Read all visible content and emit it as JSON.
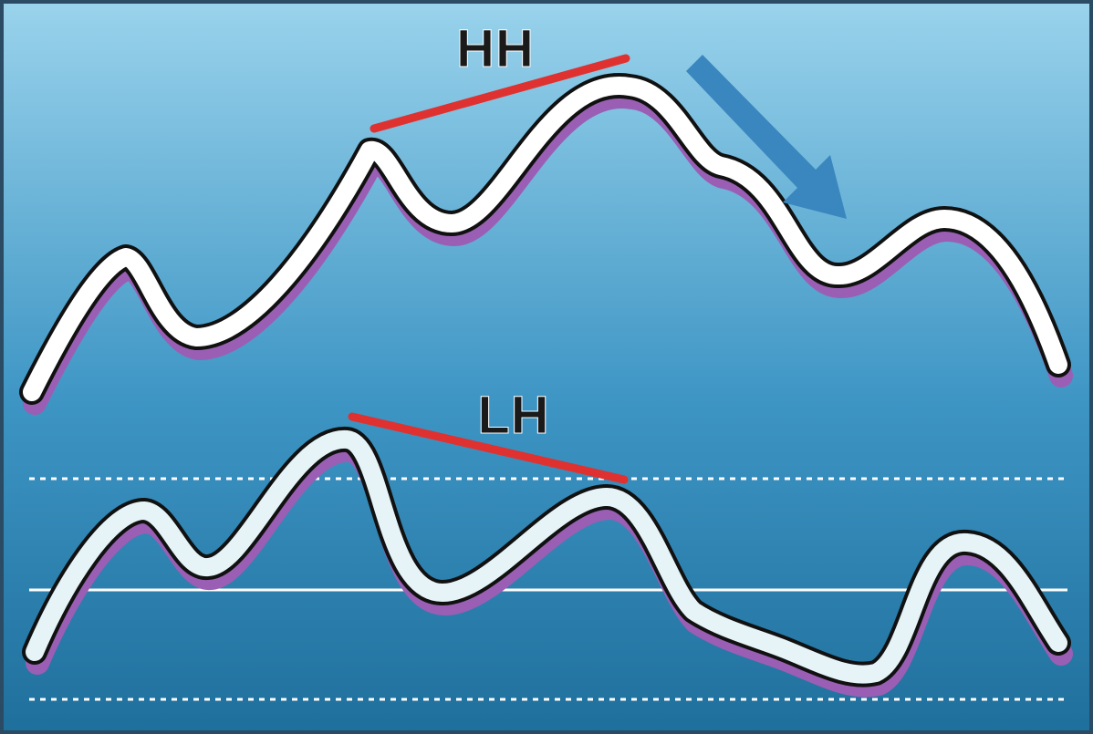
{
  "labels": {
    "upper_divergence": "HH",
    "lower_divergence": "LH"
  },
  "colors": {
    "background_top": "#9ad3ec",
    "background_bottom": "#1f6f9c",
    "price_line": "#ffffff",
    "oscillator_line": "#e6f4f7",
    "line_outline": "#111111",
    "line_shadow": "#9a5fb4",
    "trend_line": "#e03131",
    "arrow": "#3a86bf",
    "level_line": "#ffffff",
    "label_text": "#1a1a1a"
  },
  "icons": {
    "trend_arrow": "arrow-down-right-icon"
  }
}
